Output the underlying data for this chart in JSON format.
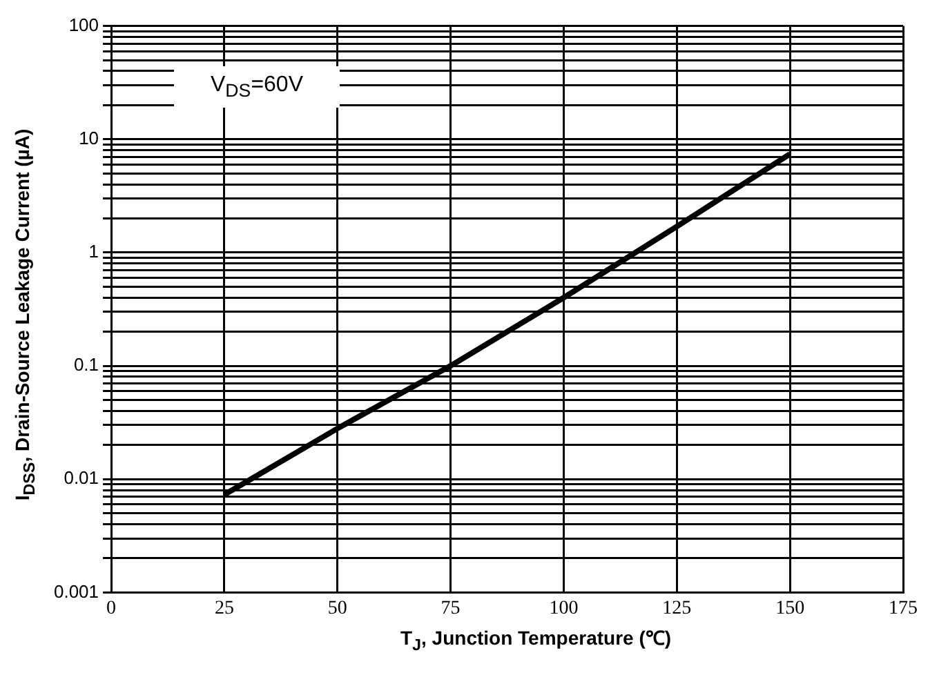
{
  "chart_data": {
    "type": "line",
    "xlabel": "T$_{J}$, Junction Temperature (℃)",
    "ylabel": "I$_{DSS}$, Drain-Source Leakage Current (µA)",
    "annotations": [
      "V$_{DS}$=60V"
    ],
    "x": [
      25,
      50,
      75,
      100,
      125,
      150
    ],
    "series": [
      {
        "color": "#000000",
        "values": [
          0.0073,
          0.028,
          0.1,
          0.4,
          1.7,
          7.4
        ]
      }
    ],
    "xlim": [
      0,
      175
    ],
    "xticks": [
      0,
      25,
      50,
      75,
      100,
      125,
      150,
      175
    ],
    "ylim": [
      0.001,
      100
    ],
    "yticks": [
      0.001,
      0.01,
      0.1,
      1,
      10,
      100
    ],
    "log": "y",
    "grid": true,
    "legend": false,
    "marker": "none",
    "line_style": "solid"
  }
}
